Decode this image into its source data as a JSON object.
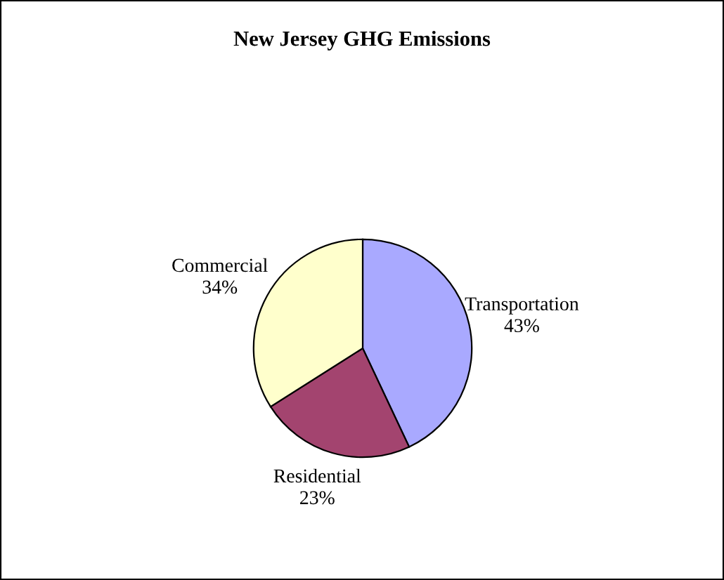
{
  "chart_data": {
    "type": "pie",
    "title": "New Jersey GHG Emissions",
    "categories": [
      "Transportation",
      "Residential",
      "Commercial"
    ],
    "values": [
      43,
      23,
      34
    ],
    "value_labels": [
      "43%",
      "23%",
      "34%"
    ],
    "colors": [
      "#a9a9ff",
      "#a3446f",
      "#ffffcc"
    ],
    "legend": false
  }
}
